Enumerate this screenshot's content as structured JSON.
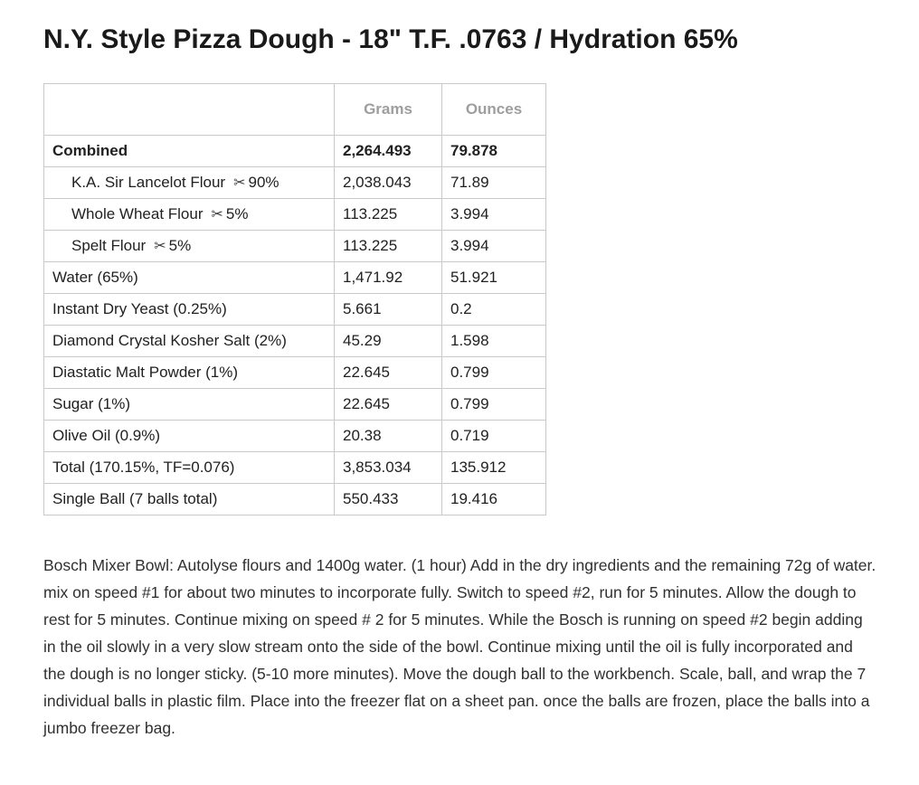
{
  "page": {
    "title": "N.Y. Style Pizza Dough - 18\" T.F. .0763 / Hydration 65%"
  },
  "icons": {
    "scissors": "✂"
  },
  "table": {
    "headers": [
      "",
      "Grams",
      "Ounces"
    ],
    "rows": [
      {
        "label": "Combined",
        "pct": "",
        "grams": "2,264.493",
        "ounces": "79.878",
        "bold": true,
        "indent": false,
        "scissors": false
      },
      {
        "label": "K.A. Sir Lancelot Flour",
        "pct": "90%",
        "grams": "2,038.043",
        "ounces": "71.89",
        "bold": false,
        "indent": true,
        "scissors": true
      },
      {
        "label": "Whole Wheat Flour",
        "pct": "5%",
        "grams": "113.225",
        "ounces": "3.994",
        "bold": false,
        "indent": true,
        "scissors": true
      },
      {
        "label": "Spelt Flour",
        "pct": "5%",
        "grams": "113.225",
        "ounces": "3.994",
        "bold": false,
        "indent": true,
        "scissors": true
      },
      {
        "label": "Water  (65%)",
        "pct": "",
        "grams": "1,471.92",
        "ounces": "51.921",
        "bold": false,
        "indent": false,
        "scissors": false
      },
      {
        "label": "Instant Dry Yeast (0.25%)",
        "pct": "",
        "grams": "5.661",
        "ounces": "0.2",
        "bold": false,
        "indent": false,
        "scissors": false
      },
      {
        "label": "Diamond Crystal Kosher Salt (2%)",
        "pct": "",
        "grams": "45.29",
        "ounces": "1.598",
        "bold": false,
        "indent": false,
        "scissors": false
      },
      {
        "label": "Diastatic Malt Powder (1%)",
        "pct": "",
        "grams": "22.645",
        "ounces": "0.799",
        "bold": false,
        "indent": false,
        "scissors": false
      },
      {
        "label": "Sugar (1%)",
        "pct": "",
        "grams": "22.645",
        "ounces": "0.799",
        "bold": false,
        "indent": false,
        "scissors": false
      },
      {
        "label": "Olive Oil (0.9%)",
        "pct": "",
        "grams": "20.38",
        "ounces": "0.719",
        "bold": false,
        "indent": false,
        "scissors": false
      },
      {
        "label": "Total (170.15%, TF=0.076)",
        "pct": "",
        "grams": "3,853.034",
        "ounces": "135.912",
        "bold": false,
        "indent": false,
        "scissors": false
      },
      {
        "label": "Single Ball (7 balls total)",
        "pct": "",
        "grams": "550.433",
        "ounces": "19.416",
        "bold": false,
        "indent": false,
        "scissors": false
      }
    ]
  },
  "instructions": "Bosch Mixer Bowl: Autolyse flours and 1400g water. (1 hour) Add in the dry ingredients and the remaining 72g of water. mix on speed #1 for about two minutes to incorporate fully. Switch to speed #2, run for 5 minutes. Allow the dough to rest for 5 minutes. Continue mixing on speed # 2 for 5 minutes. While the Bosch is running on speed #2 begin adding in the oil slowly in a very slow stream onto the side of the bowl. Continue mixing until the oil is fully incorporated and the dough is no longer sticky. (5-10 more minutes). Move the dough ball to the workbench. Scale, ball, and wrap the 7 individual balls in plastic film. Place into the freezer flat on a sheet pan. once the balls are frozen, place the balls into a jumbo freezer bag."
}
